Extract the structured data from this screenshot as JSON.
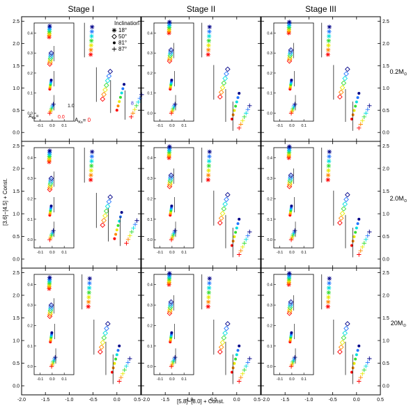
{
  "figure": {
    "stage_titles": [
      "Stage I",
      "Stage II",
      "Stage III"
    ],
    "mass_labels": [
      {
        "value": "0.2M",
        "sub": "⊙"
      },
      {
        "value": "2.0M",
        "sub": "⊙"
      },
      {
        "value": "20M",
        "sub": "⊙"
      }
    ],
    "xlabel": "[5.8]−[8.0] + Const.",
    "ylabel": "[3.6]−[4.5] + Const."
  },
  "chart_data": {
    "type": "scatter",
    "xlim": [
      -2.0,
      0.5
    ],
    "ylim": [
      -0.2,
      2.6
    ],
    "x_ticks": [
      "-2.0",
      "-1.5",
      "-1.0",
      "-0.5",
      "0.0",
      "0.5"
    ],
    "y_ticks": [
      "0.0",
      "0.5",
      "1.0",
      "1.5",
      "2.0",
      "2.5"
    ],
    "inset": {
      "xlim": [
        -0.15,
        0.18
      ],
      "ylim": [
        -0.04,
        0.45
      ],
      "x_ticks": [
        "-0.1",
        "0.0",
        "0.1"
      ],
      "y_ticks": [
        "0.0",
        "0.1",
        "0.2",
        "0.3",
        "0.4"
      ]
    },
    "legend": {
      "title": "Inclination",
      "entries": [
        {
          "symbol": "✶",
          "label": "18°"
        },
        {
          "symbol": "◇",
          "label": "50°"
        },
        {
          "symbol": "●",
          "label": "81°"
        },
        {
          "symbol": "+",
          "label": "87°"
        }
      ]
    },
    "annotations": {
      "ak_label": "A",
      "ak_sub": "Ks",
      "ak_eq": "=",
      "ak_zero": "0",
      "inset_low": "0.0",
      "inset_high": "1.0",
      "main_high": "8"
    },
    "colors": {
      "extinction_gradient": [
        "#ff0000",
        "#ff8800",
        "#e8e800",
        "#33dd33",
        "#00dddd",
        "#2277ff",
        "#000088"
      ],
      "ak_zero_color": "#ff0000"
    },
    "panels": [
      {
        "stage": "Stage I",
        "mass": "0.2 Msun",
        "main_base": [
          [
            -0.55,
            1.75
          ],
          [
            -0.3,
            0.75
          ],
          [
            0.0,
            0.5
          ],
          [
            0.3,
            0.35
          ]
        ],
        "inset_base": [
          [
            -0.025,
            0.38
          ],
          [
            -0.02,
            0.245
          ],
          [
            -0.02,
            0.12
          ],
          [
            -0.02,
            0.0
          ]
        ]
      },
      {
        "stage": "Stage II",
        "mass": "0.2 Msun",
        "main_base": [
          [
            -0.6,
            1.75
          ],
          [
            -0.35,
            0.8
          ],
          [
            -0.1,
            0.3
          ],
          [
            0.05,
            0.1
          ]
        ],
        "inset_base": [
          [
            -0.025,
            0.4
          ],
          [
            -0.02,
            0.26
          ],
          [
            -0.015,
            0.12
          ],
          [
            -0.005,
            0.0
          ]
        ]
      },
      {
        "stage": "Stage III",
        "mass": "0.2 Msun",
        "main_base": [
          [
            -0.6,
            1.75
          ],
          [
            -0.35,
            0.8
          ],
          [
            -0.1,
            0.3
          ],
          [
            0.05,
            0.1
          ]
        ],
        "inset_base": [
          [
            -0.025,
            0.4
          ],
          [
            -0.02,
            0.26
          ],
          [
            -0.015,
            0.12
          ],
          [
            -0.005,
            0.0
          ]
        ]
      },
      {
        "stage": "Stage I",
        "mass": "2.0 Msun",
        "main_base": [
          [
            -0.55,
            1.75
          ],
          [
            -0.3,
            0.75
          ],
          [
            -0.05,
            0.45
          ],
          [
            0.2,
            0.35
          ]
        ],
        "inset_base": [
          [
            -0.025,
            0.38
          ],
          [
            -0.02,
            0.245
          ],
          [
            -0.02,
            0.12
          ],
          [
            -0.02,
            0.0
          ]
        ]
      },
      {
        "stage": "Stage II",
        "mass": "2.0 Msun",
        "main_base": [
          [
            -0.6,
            1.75
          ],
          [
            -0.35,
            0.8
          ],
          [
            -0.1,
            0.3
          ],
          [
            0.05,
            0.1
          ]
        ],
        "inset_base": [
          [
            -0.025,
            0.4
          ],
          [
            -0.02,
            0.26
          ],
          [
            -0.015,
            0.12
          ],
          [
            -0.005,
            0.0
          ]
        ]
      },
      {
        "stage": "Stage III",
        "mass": "2.0 Msun",
        "main_base": [
          [
            -0.6,
            1.75
          ],
          [
            -0.35,
            0.8
          ],
          [
            -0.1,
            0.3
          ],
          [
            0.05,
            0.1
          ]
        ],
        "inset_base": [
          [
            -0.025,
            0.4
          ],
          [
            -0.02,
            0.26
          ],
          [
            -0.015,
            0.12
          ],
          [
            -0.005,
            0.0
          ]
        ]
      },
      {
        "stage": "Stage I",
        "mass": "20 Msun",
        "main_base": [
          [
            -0.6,
            1.75
          ],
          [
            -0.35,
            0.75
          ],
          [
            -0.1,
            0.3
          ],
          [
            0.05,
            0.1
          ]
        ],
        "inset_base": [
          [
            -0.025,
            0.38
          ],
          [
            -0.02,
            0.245
          ],
          [
            -0.015,
            0.12
          ],
          [
            -0.005,
            0.0
          ]
        ]
      },
      {
        "stage": "Stage II",
        "mass": "20 Msun",
        "main_base": [
          [
            -0.6,
            1.75
          ],
          [
            -0.35,
            0.75
          ],
          [
            -0.1,
            0.3
          ],
          [
            0.05,
            0.1
          ]
        ],
        "inset_base": [
          [
            -0.025,
            0.4
          ],
          [
            -0.02,
            0.26
          ],
          [
            -0.015,
            0.12
          ],
          [
            -0.005,
            0.0
          ]
        ]
      },
      {
        "stage": "Stage III",
        "mass": "20 Msun",
        "main_base": [
          [
            -0.6,
            1.75
          ],
          [
            -0.35,
            0.75
          ],
          [
            -0.1,
            0.3
          ],
          [
            0.05,
            0.1
          ]
        ],
        "inset_base": [
          [
            -0.025,
            0.4
          ],
          [
            -0.02,
            0.26
          ],
          [
            -0.015,
            0.12
          ],
          [
            -0.005,
            0.0
          ]
        ]
      }
    ]
  }
}
